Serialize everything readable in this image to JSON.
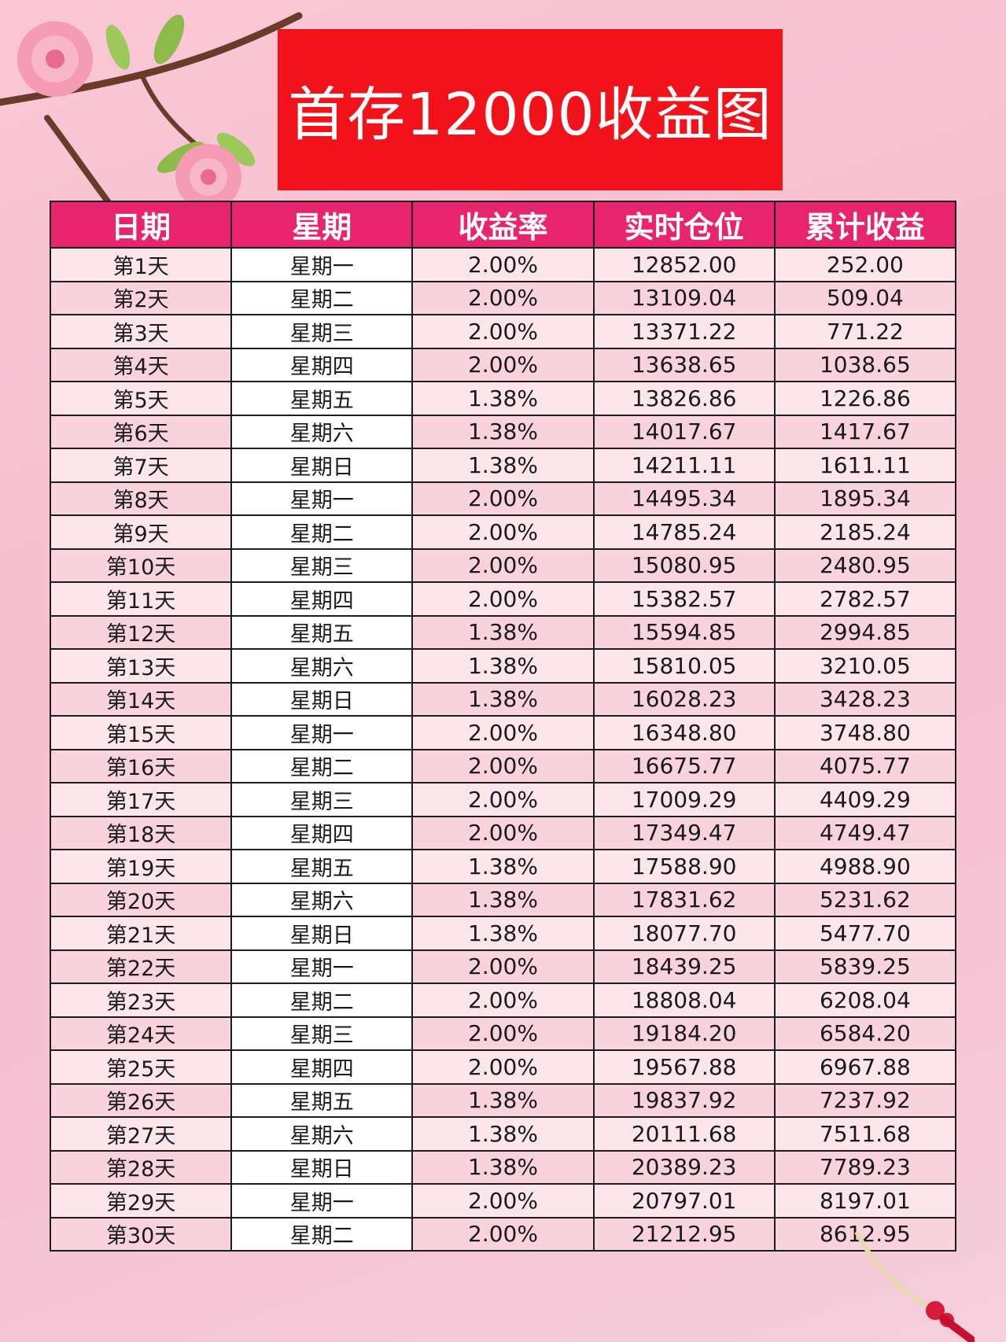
{
  "title": "首存12000收益图",
  "table": {
    "headers": [
      "日期",
      "星期",
      "收益率",
      "实时仓位",
      "累计收益"
    ],
    "rows": [
      [
        "第1天",
        "星期一",
        "2.00%",
        "12852.00",
        "252.00"
      ],
      [
        "第2天",
        "星期二",
        "2.00%",
        "13109.04",
        "509.04"
      ],
      [
        "第3天",
        "星期三",
        "2.00%",
        "13371.22",
        "771.22"
      ],
      [
        "第4天",
        "星期四",
        "2.00%",
        "13638.65",
        "1038.65"
      ],
      [
        "第5天",
        "星期五",
        "1.38%",
        "13826.86",
        "1226.86"
      ],
      [
        "第6天",
        "星期六",
        "1.38%",
        "14017.67",
        "1417.67"
      ],
      [
        "第7天",
        "星期日",
        "1.38%",
        "14211.11",
        "1611.11"
      ],
      [
        "第8天",
        "星期一",
        "2.00%",
        "14495.34",
        "1895.34"
      ],
      [
        "第9天",
        "星期二",
        "2.00%",
        "14785.24",
        "2185.24"
      ],
      [
        "第10天",
        "星期三",
        "2.00%",
        "15080.95",
        "2480.95"
      ],
      [
        "第11天",
        "星期四",
        "2.00%",
        "15382.57",
        "2782.57"
      ],
      [
        "第12天",
        "星期五",
        "1.38%",
        "15594.85",
        "2994.85"
      ],
      [
        "第13天",
        "星期六",
        "1.38%",
        "15810.05",
        "3210.05"
      ],
      [
        "第14天",
        "星期日",
        "1.38%",
        "16028.23",
        "3428.23"
      ],
      [
        "第15天",
        "星期一",
        "2.00%",
        "16348.80",
        "3748.80"
      ],
      [
        "第16天",
        "星期二",
        "2.00%",
        "16675.77",
        "4075.77"
      ],
      [
        "第17天",
        "星期三",
        "2.00%",
        "17009.29",
        "4409.29"
      ],
      [
        "第18天",
        "星期四",
        "2.00%",
        "17349.47",
        "4749.47"
      ],
      [
        "第19天",
        "星期五",
        "1.38%",
        "17588.90",
        "4988.90"
      ],
      [
        "第20天",
        "星期六",
        "1.38%",
        "17831.62",
        "5231.62"
      ],
      [
        "第21天",
        "星期日",
        "1.38%",
        "18077.70",
        "5477.70"
      ],
      [
        "第22天",
        "星期一",
        "2.00%",
        "18439.25",
        "5839.25"
      ],
      [
        "第23天",
        "星期二",
        "2.00%",
        "18808.04",
        "6208.04"
      ],
      [
        "第24天",
        "星期三",
        "2.00%",
        "19184.20",
        "6584.20"
      ],
      [
        "第25天",
        "星期四",
        "2.00%",
        "19567.88",
        "6967.88"
      ],
      [
        "第26天",
        "星期五",
        "1.38%",
        "19837.92",
        "7237.92"
      ],
      [
        "第27天",
        "星期六",
        "1.38%",
        "20111.68",
        "7511.68"
      ],
      [
        "第28天",
        "星期日",
        "1.38%",
        "20389.23",
        "7789.23"
      ],
      [
        "第29天",
        "星期一",
        "2.00%",
        "20797.01",
        "8197.01"
      ],
      [
        "第30天",
        "星期二",
        "2.00%",
        "21212.95",
        "8612.95"
      ]
    ]
  },
  "colors": {
    "banner": "#f2121a",
    "header": "#e8246c",
    "background": "#f6bfd0"
  },
  "decorations": [
    "peach-blossom-branch-icon",
    "chinese-knot-icon"
  ]
}
